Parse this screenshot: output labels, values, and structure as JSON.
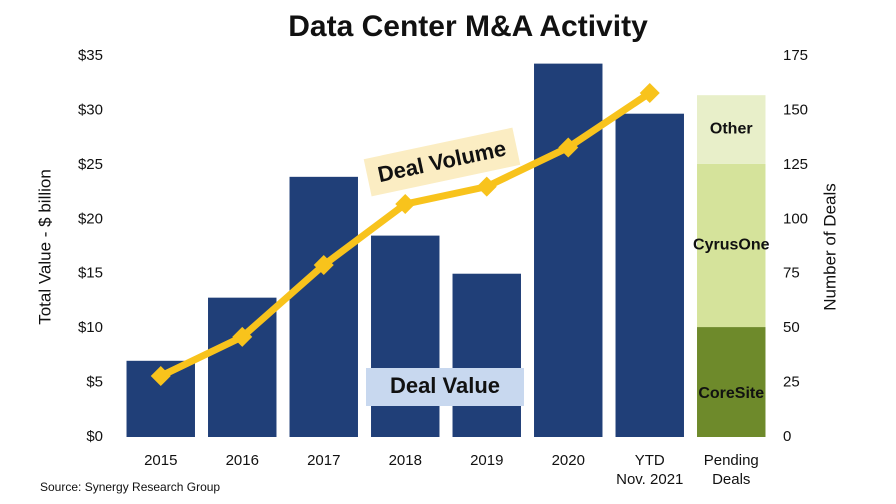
{
  "chart_data": {
    "type": "bar",
    "title": "Data Center M&A Activity",
    "source": "Source: Synergy Research Group",
    "ylabel": "Total Value - $ billion",
    "y2label": "Number of Deals",
    "categories": [
      "2015",
      "2016",
      "2017",
      "2018",
      "2019",
      "2020",
      [
        "YTD",
        "Nov. 2021"
      ],
      [
        "Pending",
        "Deals"
      ]
    ],
    "series": [
      {
        "name": "Deal Value",
        "type": "bar",
        "color": "#203f78",
        "values": [
          7.0,
          12.8,
          23.9,
          18.5,
          15.0,
          34.3,
          29.7,
          null
        ]
      },
      {
        "name": "CoreSite",
        "type": "stack",
        "color": "#6e8a2b",
        "values": [
          null,
          null,
          null,
          null,
          null,
          null,
          null,
          10.1
        ]
      },
      {
        "name": "CyrusOne",
        "type": "stack",
        "color": "#d5e39b",
        "values": [
          null,
          null,
          null,
          null,
          null,
          null,
          null,
          15.0
        ]
      },
      {
        "name": "Other",
        "type": "stack",
        "color": "#e8efc9",
        "values": [
          null,
          null,
          null,
          null,
          null,
          null,
          null,
          6.3
        ]
      },
      {
        "name": "Deal Volume",
        "type": "line",
        "axis": "y2",
        "color": "#f8c31c",
        "values": [
          28,
          46,
          79,
          107,
          115,
          133,
          158,
          null
        ]
      }
    ],
    "ylim": [
      0,
      35
    ],
    "yticks": [
      {
        "value": 0,
        "label": "$0"
      },
      {
        "value": 5,
        "label": "$5"
      },
      {
        "value": 10,
        "label": "$10"
      },
      {
        "value": 15,
        "label": "$15"
      },
      {
        "value": 20,
        "label": "$20"
      },
      {
        "value": 25,
        "label": "$25"
      },
      {
        "value": 30,
        "label": "$30"
      },
      {
        "value": 35,
        "label": "$35"
      }
    ],
    "y2lim": [
      0,
      175
    ],
    "y2ticks": [
      0,
      25,
      50,
      75,
      100,
      125,
      150,
      175
    ],
    "grid": false
  }
}
